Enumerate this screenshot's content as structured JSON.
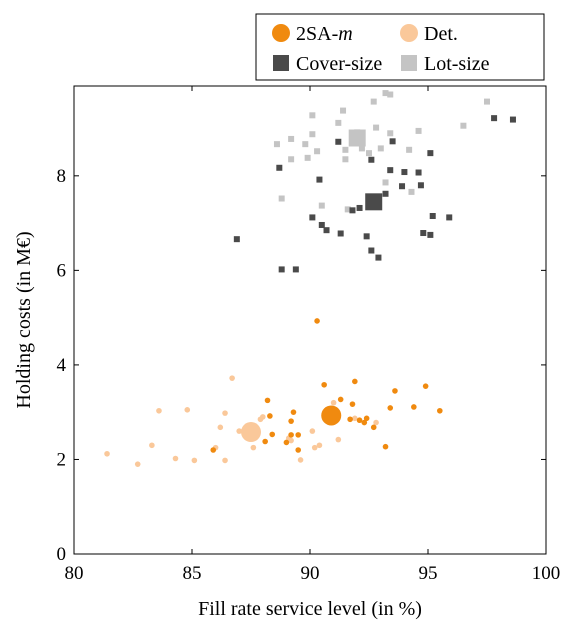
{
  "chart_data": {
    "type": "scatter",
    "xlabel": "Fill rate service level (in %)",
    "ylabel": "Holding costs (in M€)",
    "xlim": [
      80,
      100
    ],
    "ylim": [
      0,
      9.9
    ],
    "xticks": [
      "80",
      "85",
      "90",
      "95",
      "100"
    ],
    "yticks": [
      "0",
      "2",
      "4",
      "6",
      "8"
    ],
    "grid": false,
    "legend_position": "top-right, outside above plot",
    "colors": {
      "two_sa_m": "#f08a0f",
      "det": "#fac89a",
      "cover_size": "#4a4a4a",
      "lot_size": "#c4c4c4"
    },
    "series": [
      {
        "name": "2SA-m",
        "name_base": "2SA-",
        "name_italic": "m",
        "marker": "circle",
        "color": "#f08a0f",
        "average": {
          "x": 90.9,
          "y": 2.93
        },
        "points": [
          {
            "x": 87.4,
            "y": 2.58
          },
          {
            "x": 85.9,
            "y": 2.2
          },
          {
            "x": 88.2,
            "y": 3.25
          },
          {
            "x": 88.3,
            "y": 2.92
          },
          {
            "x": 88.4,
            "y": 2.53
          },
          {
            "x": 88.1,
            "y": 2.38
          },
          {
            "x": 89.0,
            "y": 2.36
          },
          {
            "x": 89.2,
            "y": 2.81
          },
          {
            "x": 89.3,
            "y": 3.0
          },
          {
            "x": 89.2,
            "y": 2.52
          },
          {
            "x": 89.5,
            "y": 2.52
          },
          {
            "x": 89.5,
            "y": 2.2
          },
          {
            "x": 90.3,
            "y": 4.93
          },
          {
            "x": 90.6,
            "y": 3.58
          },
          {
            "x": 91.3,
            "y": 3.27
          },
          {
            "x": 91.7,
            "y": 2.85
          },
          {
            "x": 91.9,
            "y": 3.65
          },
          {
            "x": 91.8,
            "y": 3.17
          },
          {
            "x": 92.1,
            "y": 2.83
          },
          {
            "x": 92.3,
            "y": 2.78
          },
          {
            "x": 92.4,
            "y": 2.87
          },
          {
            "x": 92.7,
            "y": 2.68
          },
          {
            "x": 93.2,
            "y": 2.27
          },
          {
            "x": 93.4,
            "y": 3.09
          },
          {
            "x": 93.6,
            "y": 3.45
          },
          {
            "x": 94.4,
            "y": 3.11
          },
          {
            "x": 94.9,
            "y": 3.55
          },
          {
            "x": 95.5,
            "y": 3.03
          }
        ]
      },
      {
        "name": "Det.",
        "marker": "circle",
        "color": "#fac89a",
        "average": {
          "x": 87.5,
          "y": 2.58
        },
        "points": [
          {
            "x": 81.4,
            "y": 2.12
          },
          {
            "x": 82.7,
            "y": 1.9
          },
          {
            "x": 83.3,
            "y": 2.3
          },
          {
            "x": 83.6,
            "y": 3.03
          },
          {
            "x": 84.3,
            "y": 2.02
          },
          {
            "x": 84.8,
            "y": 3.05
          },
          {
            "x": 85.1,
            "y": 1.98
          },
          {
            "x": 86.0,
            "y": 2.25
          },
          {
            "x": 86.2,
            "y": 2.68
          },
          {
            "x": 86.4,
            "y": 1.98
          },
          {
            "x": 86.4,
            "y": 2.98
          },
          {
            "x": 86.7,
            "y": 3.72
          },
          {
            "x": 87.0,
            "y": 2.6
          },
          {
            "x": 87.6,
            "y": 2.25
          },
          {
            "x": 87.9,
            "y": 2.85
          },
          {
            "x": 88.0,
            "y": 2.9
          },
          {
            "x": 89.1,
            "y": 2.45
          },
          {
            "x": 89.2,
            "y": 2.4
          },
          {
            "x": 89.6,
            "y": 1.99
          },
          {
            "x": 90.1,
            "y": 2.6
          },
          {
            "x": 90.2,
            "y": 2.25
          },
          {
            "x": 90.4,
            "y": 2.3
          },
          {
            "x": 91.0,
            "y": 3.2
          },
          {
            "x": 91.2,
            "y": 2.42
          },
          {
            "x": 91.9,
            "y": 2.87
          },
          {
            "x": 92.8,
            "y": 2.78
          }
        ]
      },
      {
        "name": "Cover-size",
        "marker": "square",
        "color": "#4a4a4a",
        "average": {
          "x": 92.7,
          "y": 7.45
        },
        "points": [
          {
            "x": 86.9,
            "y": 6.66
          },
          {
            "x": 88.7,
            "y": 8.17
          },
          {
            "x": 88.8,
            "y": 6.02
          },
          {
            "x": 89.4,
            "y": 6.02
          },
          {
            "x": 90.1,
            "y": 7.12
          },
          {
            "x": 90.4,
            "y": 7.92
          },
          {
            "x": 90.5,
            "y": 6.96
          },
          {
            "x": 90.7,
            "y": 6.85
          },
          {
            "x": 91.2,
            "y": 8.72
          },
          {
            "x": 91.3,
            "y": 6.78
          },
          {
            "x": 91.8,
            "y": 7.27
          },
          {
            "x": 92.1,
            "y": 7.32
          },
          {
            "x": 92.2,
            "y": 8.77
          },
          {
            "x": 92.4,
            "y": 6.72
          },
          {
            "x": 92.6,
            "y": 6.42
          },
          {
            "x": 92.6,
            "y": 8.34
          },
          {
            "x": 92.9,
            "y": 6.27
          },
          {
            "x": 93.2,
            "y": 7.62
          },
          {
            "x": 93.4,
            "y": 8.12
          },
          {
            "x": 93.5,
            "y": 8.73
          },
          {
            "x": 93.9,
            "y": 7.78
          },
          {
            "x": 94.0,
            "y": 8.08
          },
          {
            "x": 94.6,
            "y": 8.07
          },
          {
            "x": 94.7,
            "y": 7.8
          },
          {
            "x": 94.8,
            "y": 6.79
          },
          {
            "x": 95.1,
            "y": 6.75
          },
          {
            "x": 95.1,
            "y": 8.48
          },
          {
            "x": 95.2,
            "y": 7.15
          },
          {
            "x": 95.9,
            "y": 7.12
          },
          {
            "x": 97.8,
            "y": 9.22
          },
          {
            "x": 98.6,
            "y": 9.19
          }
        ]
      },
      {
        "name": "Lot-size",
        "marker": "square",
        "color": "#c4c4c4",
        "average": {
          "x": 92.0,
          "y": 8.8
        },
        "points": [
          {
            "x": 88.6,
            "y": 8.67
          },
          {
            "x": 88.8,
            "y": 7.52
          },
          {
            "x": 89.2,
            "y": 8.35
          },
          {
            "x": 89.2,
            "y": 8.78
          },
          {
            "x": 89.8,
            "y": 8.67
          },
          {
            "x": 89.9,
            "y": 8.38
          },
          {
            "x": 90.1,
            "y": 8.88
          },
          {
            "x": 90.1,
            "y": 9.28
          },
          {
            "x": 90.3,
            "y": 8.52
          },
          {
            "x": 90.5,
            "y": 7.37
          },
          {
            "x": 91.2,
            "y": 9.12
          },
          {
            "x": 91.4,
            "y": 9.38
          },
          {
            "x": 91.5,
            "y": 8.35
          },
          {
            "x": 91.5,
            "y": 8.55
          },
          {
            "x": 91.6,
            "y": 7.29
          },
          {
            "x": 92.0,
            "y": 8.92
          },
          {
            "x": 92.2,
            "y": 8.58
          },
          {
            "x": 92.5,
            "y": 8.48
          },
          {
            "x": 92.7,
            "y": 9.57
          },
          {
            "x": 92.8,
            "y": 9.02
          },
          {
            "x": 93.0,
            "y": 8.58
          },
          {
            "x": 93.2,
            "y": 7.86
          },
          {
            "x": 93.2,
            "y": 9.75
          },
          {
            "x": 93.4,
            "y": 8.9
          },
          {
            "x": 93.4,
            "y": 9.72
          },
          {
            "x": 94.2,
            "y": 8.55
          },
          {
            "x": 94.3,
            "y": 7.66
          },
          {
            "x": 94.6,
            "y": 8.95
          },
          {
            "x": 96.5,
            "y": 9.06
          },
          {
            "x": 97.5,
            "y": 9.57
          }
        ]
      }
    ]
  }
}
